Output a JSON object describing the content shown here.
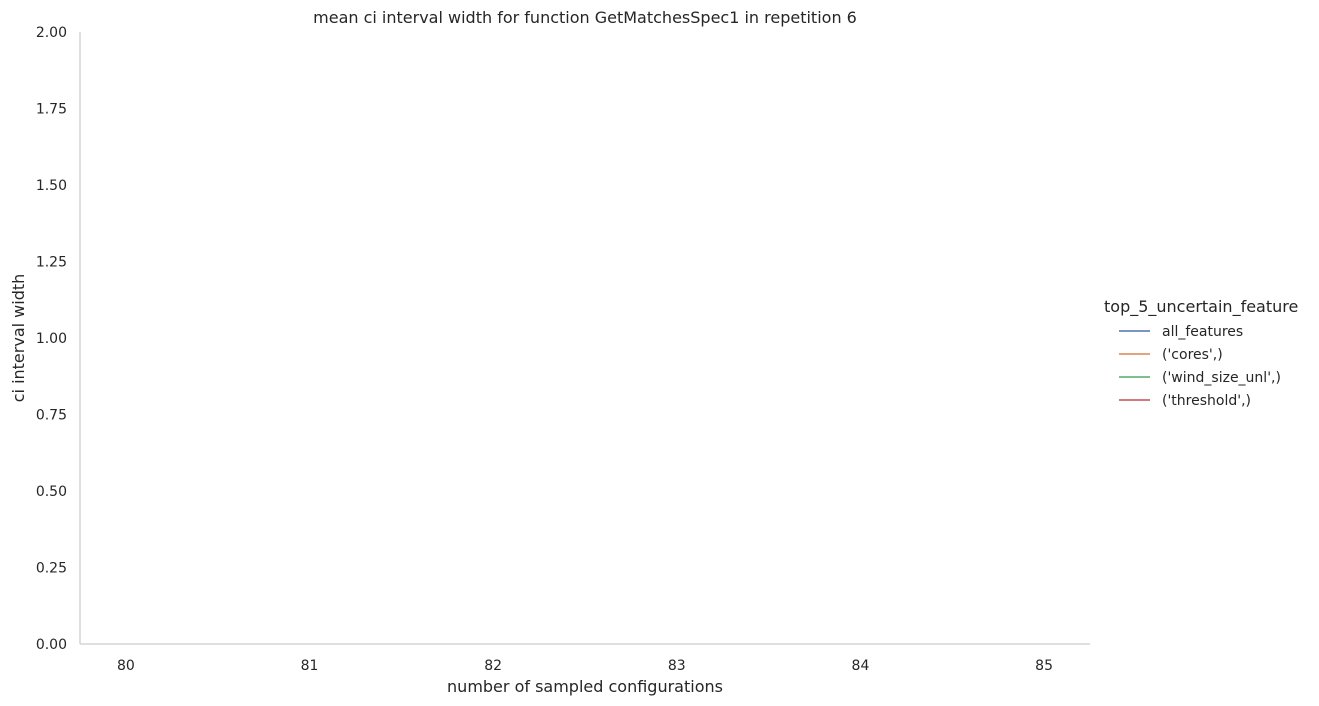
{
  "chart_data": {
    "type": "line",
    "title": "mean ci interval width for function GetMatchesSpec1 in repetition 6",
    "xlabel": "number of sampled configurations",
    "ylabel": "ci interval width",
    "x_ticks": [
      "80",
      "81",
      "82",
      "83",
      "84",
      "85"
    ],
    "y_ticks": [
      "0.00",
      "0.25",
      "0.50",
      "0.75",
      "1.00",
      "1.25",
      "1.50",
      "1.75",
      "2.00"
    ],
    "xlim": [
      79.75,
      85.25
    ],
    "ylim": [
      0,
      2
    ],
    "grid": false,
    "legend_title": "top_5_uncertain_feature",
    "legend_position": "right",
    "series": [
      {
        "name": "all_features",
        "color": "#4c72b0",
        "x": [],
        "y": []
      },
      {
        "name": "('cores',)",
        "color": "#dd8452",
        "x": [],
        "y": []
      },
      {
        "name": "('wind_size_unl',)",
        "color": "#55a868",
        "x": [],
        "y": []
      },
      {
        "name": "('threshold',)",
        "color": "#c44e52",
        "x": [],
        "y": []
      }
    ]
  }
}
